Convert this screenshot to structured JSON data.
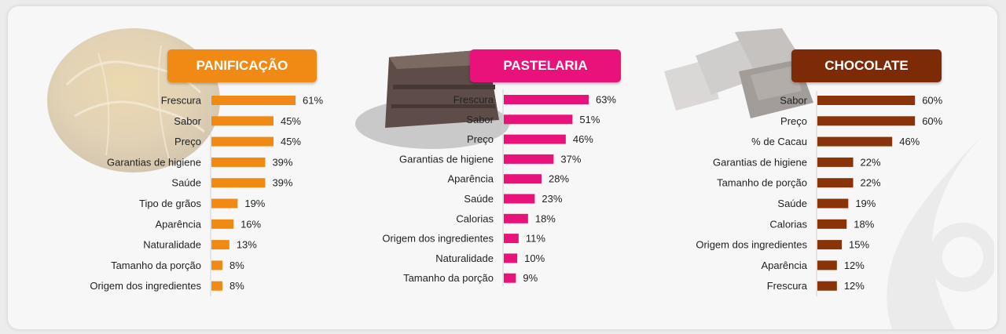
{
  "chart_data": [
    {
      "type": "bar",
      "title": "PANIFICAÇÃO",
      "color": "#f08a14",
      "categories": [
        "Frescura",
        "Sabor",
        "Preço",
        "Garantias de higiene",
        "Saúde",
        "Tipo de grãos",
        "Aparência",
        "Naturalidade",
        "Tamanho da porção",
        "Origem dos ingredientes"
      ],
      "values": [
        61,
        45,
        45,
        39,
        39,
        19,
        16,
        13,
        8,
        8
      ],
      "labels": [
        "61%",
        "45%",
        "45%",
        "39%",
        "39%",
        "19%",
        "16%",
        "13%",
        "8%",
        "8%"
      ],
      "orientation": "horizontal"
    },
    {
      "type": "bar",
      "title": "PASTELARIA",
      "color": "#e8127a",
      "categories": [
        "Frescura",
        "Sabor",
        "Preço",
        "Garantias de higiene",
        "Aparência",
        "Saúde",
        "Calorias",
        "Origem dos ingredientes",
        "Naturalidade",
        "Tamanho da porção"
      ],
      "values": [
        63,
        51,
        46,
        37,
        28,
        23,
        18,
        11,
        10,
        9
      ],
      "labels": [
        "63%",
        "51%",
        "46%",
        "37%",
        "28%",
        "23%",
        "18%",
        "11%",
        "10%",
        "9%"
      ],
      "orientation": "horizontal"
    },
    {
      "type": "bar",
      "title": "CHOCOLATE",
      "color": "#8a3208",
      "categories": [
        "Sabor",
        "Preço",
        "% de Cacau",
        "Garantias de higiene",
        "Tamanho de porção",
        "Saúde",
        "Calorias",
        "Origem dos ingredientes",
        "Aparência",
        "Frescura"
      ],
      "values": [
        60,
        60,
        46,
        22,
        22,
        19,
        18,
        15,
        12,
        12
      ],
      "labels": [
        "60%",
        "60%",
        "46%",
        "22%",
        "22%",
        "19%",
        "18%",
        "15%",
        "12%",
        "12%"
      ],
      "orientation": "horizontal"
    }
  ]
}
